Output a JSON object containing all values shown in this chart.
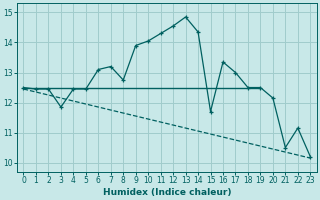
{
  "title": "",
  "xlabel": "Humidex (Indice chaleur)",
  "bg_color": "#c8e8e8",
  "grid_color": "#a0cccc",
  "line_color": "#006060",
  "xlim": [
    -0.5,
    23.5
  ],
  "ylim": [
    9.7,
    15.3
  ],
  "yticks": [
    10,
    11,
    12,
    13,
    14,
    15
  ],
  "xticks": [
    0,
    1,
    2,
    3,
    4,
    5,
    6,
    7,
    8,
    9,
    10,
    11,
    12,
    13,
    14,
    15,
    16,
    17,
    18,
    19,
    20,
    21,
    22,
    23
  ],
  "line1_x": [
    0,
    1,
    2,
    3,
    4,
    5,
    6,
    7,
    8,
    9,
    10,
    11,
    12,
    13,
    14,
    15,
    16,
    17,
    18,
    19,
    20,
    21,
    22,
    23
  ],
  "line1_y": [
    12.5,
    12.45,
    12.45,
    11.85,
    12.45,
    12.45,
    13.1,
    13.2,
    12.75,
    13.9,
    14.05,
    14.3,
    14.55,
    14.85,
    14.35,
    11.7,
    13.35,
    13.0,
    12.5,
    12.5,
    12.15,
    10.5,
    11.15,
    10.2
  ],
  "line2_x": [
    0,
    19
  ],
  "line2_y": [
    12.5,
    12.5
  ],
  "line3_x": [
    0,
    23
  ],
  "line3_y": [
    12.45,
    10.15
  ],
  "tick_fontsize": 5.5,
  "xlabel_fontsize": 6.5
}
